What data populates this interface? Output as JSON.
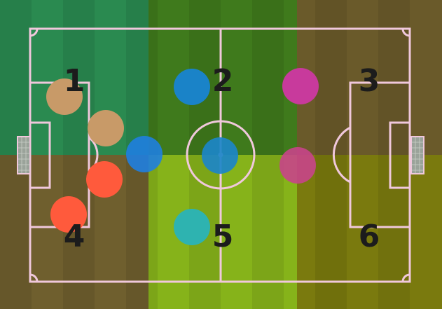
{
  "zones": [
    {
      "label": "1",
      "color": "#2a8a50"
    },
    {
      "label": "2",
      "color": "#3f7a1c"
    },
    {
      "label": "3",
      "color": "#6a5a2a"
    },
    {
      "label": "4",
      "color": "#6f5f2e"
    },
    {
      "label": "5",
      "color": "#86b31a"
    },
    {
      "label": "6",
      "color": "#7a7a0e"
    }
  ],
  "players": [
    {
      "name": "player-tan-top",
      "color": "#c89a68"
    },
    {
      "name": "player-tan-mid",
      "color": "#c89a68"
    },
    {
      "name": "player-orange-mid",
      "color": "#ff5a3c"
    },
    {
      "name": "player-orange-bottom",
      "color": "#ff5a3c"
    },
    {
      "name": "player-blue-left",
      "color": "#1f7fe0"
    },
    {
      "name": "player-blue-top",
      "color": "#1a83c8"
    },
    {
      "name": "player-blue-center",
      "color": "#1c86c8"
    },
    {
      "name": "player-teal-bottom",
      "color": "#2eb3b0"
    },
    {
      "name": "player-magenta-top",
      "color": "#c83a9c"
    },
    {
      "name": "player-magenta-mid",
      "color": "#c8448a"
    }
  ],
  "colors": {
    "line": "#f0c8dc",
    "line_white": "#eef2e6"
  }
}
